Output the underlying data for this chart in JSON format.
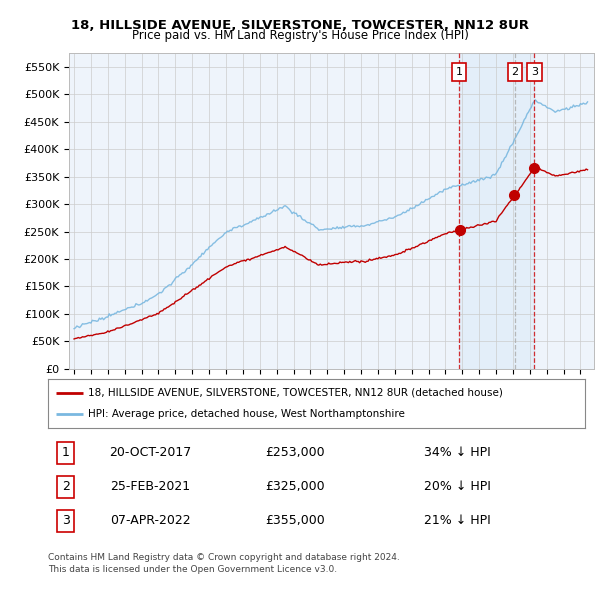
{
  "title1": "18, HILLSIDE AVENUE, SILVERSTONE, TOWCESTER, NN12 8UR",
  "title2": "Price paid vs. HM Land Registry's House Price Index (HPI)",
  "ylabel_ticks": [
    "£0",
    "£50K",
    "£100K",
    "£150K",
    "£200K",
    "£250K",
    "£300K",
    "£350K",
    "£400K",
    "£450K",
    "£500K",
    "£550K"
  ],
  "ytick_vals": [
    0,
    50000,
    100000,
    150000,
    200000,
    250000,
    300000,
    350000,
    400000,
    450000,
    500000,
    550000
  ],
  "xlim_start": 1994.7,
  "xlim_end": 2025.8,
  "ylim_min": 0,
  "ylim_max": 575000,
  "hpi_color": "#7ab8e0",
  "price_color": "#c00000",
  "vline_color": "#cc0000",
  "vline2_color": "#aaaaaa",
  "grid_color": "#cccccc",
  "background_color": "#eef4fb",
  "chart_bg_color": "#eef4fb",
  "legend_box_color": "#ffffff",
  "legend_label1": "18, HILLSIDE AVENUE, SILVERSTONE, TOWCESTER, NN12 8UR (detached house)",
  "legend_label2": "HPI: Average price, detached house, West Northamptonshire",
  "sale1_date": 2017.8,
  "sale1_price": 253000,
  "sale1_label": "1",
  "sale1_text": "20-OCT-2017",
  "sale1_price_str": "£253,000",
  "sale1_hpi_str": "34% ↓ HPI",
  "sale2_date": 2021.12,
  "sale2_price": 325000,
  "sale2_label": "2",
  "sale2_text": "25-FEB-2021",
  "sale2_price_str": "£325,000",
  "sale2_hpi_str": "20% ↓ HPI",
  "sale3_date": 2022.27,
  "sale3_price": 355000,
  "sale3_label": "3",
  "sale3_text": "07-APR-2022",
  "sale3_price_str": "£355,000",
  "sale3_hpi_str": "21% ↓ HPI",
  "footnote1": "Contains HM Land Registry data © Crown copyright and database right 2024.",
  "footnote2": "This data is licensed under the Open Government Licence v3.0."
}
